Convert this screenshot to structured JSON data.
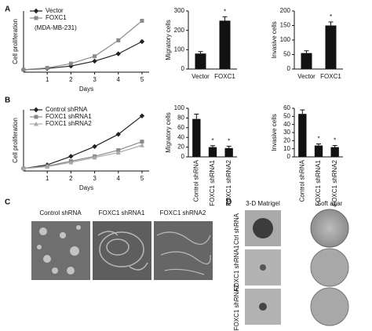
{
  "panel_labels": [
    "A",
    "B",
    "C",
    "D"
  ],
  "chart_data": [
    {
      "type": "line",
      "x": [
        0,
        1,
        2,
        3,
        4,
        5
      ],
      "xlim": [
        0,
        5.3
      ],
      "xticks": [
        1,
        2,
        3,
        4,
        5
      ],
      "ylim": [
        0,
        5
      ],
      "xlabel": "Days",
      "ylabel": "Cell proliferation",
      "annotation": "(MDA-MB-231)",
      "series": [
        {
          "name": "Vector",
          "color": "#222222",
          "marker": "diamond",
          "values": [
            0.2,
            0.3,
            0.5,
            0.9,
            1.5,
            2.5
          ]
        },
        {
          "name": "FOXC1",
          "color": "#8a8a8a",
          "marker": "square",
          "values": [
            0.2,
            0.35,
            0.7,
            1.3,
            2.6,
            4.2
          ]
        }
      ]
    },
    {
      "type": "bar",
      "categories": [
        "Vector",
        "FOXC1"
      ],
      "values": [
        80,
        250
      ],
      "errors": [
        10,
        20
      ],
      "markers": [
        null,
        "*"
      ],
      "color": "#111111",
      "ylim": [
        0,
        300
      ],
      "yticks": [
        0,
        100,
        200,
        300
      ],
      "ylabel": "Migratory cells"
    },
    {
      "type": "bar",
      "categories": [
        "Vector",
        "FOXC1"
      ],
      "values": [
        55,
        150
      ],
      "errors": [
        8,
        12
      ],
      "markers": [
        null,
        "*"
      ],
      "color": "#111111",
      "ylim": [
        0,
        200
      ],
      "yticks": [
        0,
        50,
        100,
        150,
        200
      ],
      "ylabel": "Invasive cells"
    },
    {
      "type": "line",
      "x": [
        0,
        1,
        2,
        3,
        4,
        5
      ],
      "xlim": [
        0,
        5.3
      ],
      "xticks": [
        1,
        2,
        3,
        4,
        5
      ],
      "ylim": [
        0,
        5
      ],
      "xlabel": "Days",
      "ylabel": "Cell proliferation",
      "series": [
        {
          "name": "Control shRNA",
          "color": "#222222",
          "marker": "diamond",
          "values": [
            0.2,
            0.5,
            1.2,
            2.0,
            3.0,
            4.5
          ]
        },
        {
          "name": "FOXC1 shRNA1",
          "color": "#8a8a8a",
          "marker": "square",
          "values": [
            0.2,
            0.4,
            0.8,
            1.2,
            1.7,
            2.4
          ]
        },
        {
          "name": "FOXC1 shRNA2",
          "color": "#aaaaaa",
          "marker": "triangle",
          "values": [
            0.2,
            0.35,
            0.7,
            1.1,
            1.5,
            2.1
          ]
        }
      ]
    },
    {
      "type": "bar",
      "categories": [
        "Control shRNA",
        "FOXC1 shRNA1",
        "FOXC1 shRNA2"
      ],
      "values": [
        78,
        20,
        18
      ],
      "errors": [
        10,
        3,
        4
      ],
      "markers": [
        null,
        "*",
        "*"
      ],
      "rotate_labels": true,
      "color": "#111111",
      "ylim": [
        0,
        100
      ],
      "yticks": [
        0,
        20,
        40,
        60,
        80,
        100
      ],
      "ylabel": "Migratory cells"
    },
    {
      "type": "bar",
      "categories": [
        "Control shRNA",
        "FOXC1 shRNA1",
        "FOXC1 shRNA2"
      ],
      "values": [
        53,
        14,
        12
      ],
      "errors": [
        5,
        2,
        2
      ],
      "markers": [
        null,
        "*",
        "*"
      ],
      "rotate_labels": true,
      "color": "#111111",
      "ylim": [
        0,
        60
      ],
      "yticks": [
        0,
        10,
        20,
        30,
        40,
        50,
        60
      ],
      "ylabel": "Invasive cells"
    }
  ],
  "panel_c": {
    "labels": [
      "Control shRNA",
      "FOXC1 shRNA1",
      "FOXC1 shRNA2"
    ]
  },
  "panel_d": {
    "columns": [
      "3-D Matrigel",
      "Soft agar"
    ],
    "rows": [
      "Ctrl shRNA",
      "FOXC1 shRNA1",
      "FOXC1 shRNA2"
    ]
  }
}
